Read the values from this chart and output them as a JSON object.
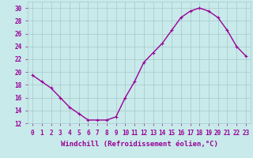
{
  "x": [
    0,
    1,
    2,
    3,
    4,
    5,
    6,
    7,
    8,
    9,
    10,
    11,
    12,
    13,
    14,
    15,
    16,
    17,
    18,
    19,
    20,
    21,
    22,
    23
  ],
  "y": [
    19.5,
    18.5,
    17.5,
    16.0,
    14.5,
    13.5,
    12.5,
    12.5,
    12.5,
    13.0,
    16.0,
    18.5,
    21.5,
    23.0,
    24.5,
    26.5,
    28.5,
    29.5,
    30.0,
    29.5,
    28.5,
    26.5,
    24.0,
    22.5
  ],
  "line_color": "#990099",
  "marker": "+",
  "bg_color": "#c8eaea",
  "grid_color": "#a8c8c8",
  "xlabel": "Windchill (Refroidissement éolien,°C)",
  "ylim": [
    12,
    31
  ],
  "xlim_min": -0.5,
  "xlim_max": 23.5,
  "yticks": [
    12,
    14,
    16,
    18,
    20,
    22,
    24,
    26,
    28,
    30
  ],
  "xticks": [
    0,
    1,
    2,
    3,
    4,
    5,
    6,
    7,
    8,
    9,
    10,
    11,
    12,
    13,
    14,
    15,
    16,
    17,
    18,
    19,
    20,
    21,
    22,
    23
  ],
  "xlabel_fontsize": 6.5,
  "tick_fontsize": 5.5,
  "line_width": 1.0,
  "marker_size": 3.5
}
